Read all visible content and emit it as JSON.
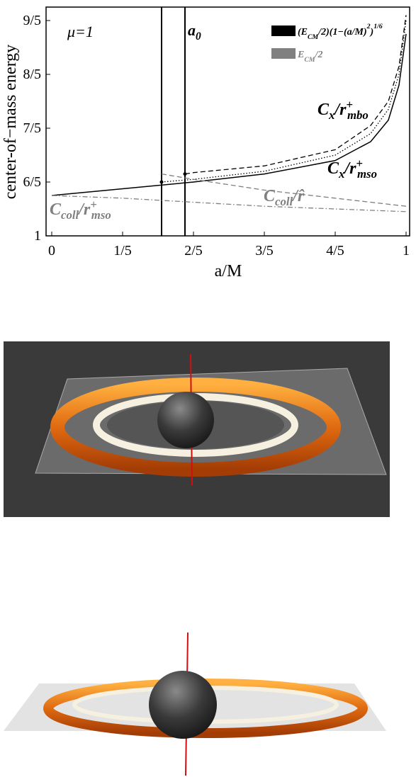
{
  "chart_data": {
    "type": "line",
    "ylabel": "center-of−mass energy",
    "xlabel": "a/M",
    "xlim": [
      0,
      1
    ],
    "ylim": [
      1,
      1.85
    ],
    "xticks": [
      0,
      {
        "value": 0.2,
        "label": "1/5"
      },
      {
        "value": 0.4,
        "label": "2/5"
      },
      {
        "value": 0.6,
        "label": "3/5"
      },
      {
        "value": 0.8,
        "label": "4/5"
      },
      1
    ],
    "yticks": [
      1,
      {
        "value": 1.2,
        "label": "6/5"
      },
      {
        "value": 1.4,
        "label": "7/5"
      },
      {
        "value": 1.6,
        "label": "8/5"
      },
      {
        "value": 1.8,
        "label": "9/5"
      }
    ],
    "annotations": {
      "mu": [
        {
          "text": "μ",
          "pos": "base"
        },
        {
          "text": "=1",
          "pos": "base"
        }
      ],
      "a0": [
        {
          "text": "a",
          "pos": "base"
        },
        {
          "text": "0",
          "pos": "sub"
        }
      ]
    },
    "vlines": [
      0.31,
      0.376
    ],
    "legend": [
      {
        "color": "#000000",
        "parts": [
          {
            "text": "(E",
            "pos": "base"
          },
          {
            "text": "CM",
            "pos": "sub"
          },
          {
            "text": "/2)(1−(a/M)",
            "pos": "base"
          },
          {
            "text": "2",
            "pos": "sup"
          },
          {
            "text": ")",
            "pos": "base"
          },
          {
            "text": "1/6",
            "pos": "sup"
          }
        ]
      },
      {
        "color": "#808080",
        "parts": [
          {
            "text": "E",
            "pos": "base"
          },
          {
            "text": "CM",
            "pos": "sub"
          },
          {
            "text": "/2",
            "pos": "base"
          }
        ]
      }
    ],
    "series": [
      {
        "color": "#000000",
        "dash": "solid",
        "label_parts": [
          {
            "text": "C",
            "pos": "base"
          },
          {
            "text": "x",
            "pos": "sub"
          },
          {
            "text": "/r",
            "pos": "base"
          },
          {
            "text": "+",
            "pos": "sup"
          },
          {
            "text": "mso",
            "pos": "sub"
          }
        ],
        "x": [
          0,
          0.2,
          0.4,
          0.6,
          0.8,
          0.9,
          0.95,
          0.98,
          1
        ],
        "values": [
          1.15,
          1.175,
          1.2,
          1.23,
          1.28,
          1.35,
          1.43,
          1.56,
          1.75
        ]
      },
      {
        "color": "#000000",
        "dash": "dashed",
        "label_parts": [
          {
            "text": "C",
            "pos": "base"
          },
          {
            "text": "x",
            "pos": "sub"
          },
          {
            "text": "/r",
            "pos": "base"
          },
          {
            "text": "+",
            "pos": "sup"
          },
          {
            "text": "mbo",
            "pos": "sub"
          }
        ],
        "x": [
          0.376,
          0.4,
          0.6,
          0.8,
          0.9,
          0.95,
          0.98,
          1
        ],
        "values": [
          1.23,
          1.235,
          1.26,
          1.32,
          1.41,
          1.5,
          1.63,
          1.82
        ]
      },
      {
        "color": "#000000",
        "dash": "dotted",
        "x": [
          0.31,
          0.4,
          0.6,
          0.8,
          0.9,
          0.95,
          0.98,
          1
        ],
        "values": [
          1.2,
          1.21,
          1.24,
          1.3,
          1.38,
          1.47,
          1.6,
          1.8
        ]
      },
      {
        "color": "#808080",
        "dash": "dashed",
        "label_parts": [
          {
            "text": "C",
            "pos": "base"
          },
          {
            "text": "coll",
            "pos": "sub"
          },
          {
            "text": "/r̂",
            "pos": "base"
          }
        ],
        "x": [
          0.31,
          0.4,
          0.6,
          0.8,
          1
        ],
        "values": [
          1.23,
          1.21,
          1.17,
          1.14,
          1.11
        ]
      },
      {
        "color": "#808080",
        "dash": "dashdot",
        "label_parts": [
          {
            "text": "C",
            "pos": "base"
          },
          {
            "text": "coll",
            "pos": "sub"
          },
          {
            "text": "/r",
            "pos": "base"
          },
          {
            "text": "+",
            "pos": "sup"
          },
          {
            "text": "mso",
            "pos": "sub"
          }
        ],
        "x": [
          0,
          0.2,
          0.4,
          0.6,
          0.8,
          1
        ],
        "values": [
          1.15,
          1.14,
          1.125,
          1.11,
          1.1,
          1.09
        ]
      }
    ]
  }
}
